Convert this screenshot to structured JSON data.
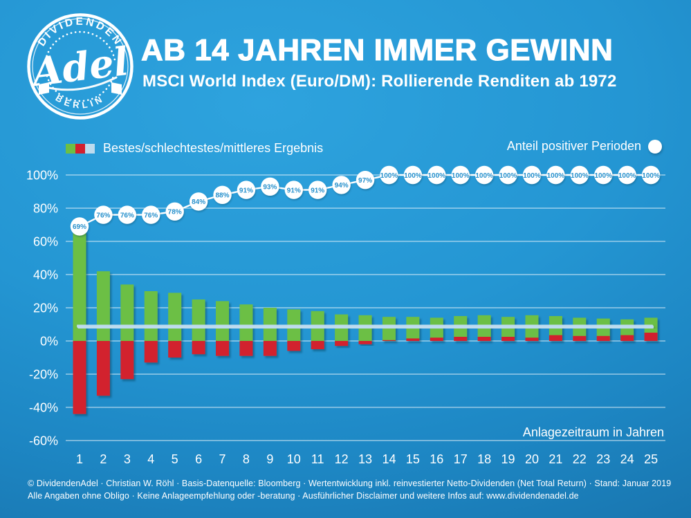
{
  "logo": {
    "arc_top": "DIVIDENDEN",
    "script": "Adel",
    "arc_bottom": "BERLIN"
  },
  "header": {
    "title": "AB 14 JAHREN IMMER GEWINN",
    "subtitle": "MSCI World Index (Euro/DM): Rollierende Renditen ab 1972"
  },
  "legend": {
    "bars_label": "Bestes/schlechtestes/mittleres Ergebnis",
    "circles_label": "Anteil positiver Perioden"
  },
  "colors": {
    "best": "#6cbf45",
    "worst": "#d2202e",
    "median": "#bddbee",
    "circle_fill": "#ffffff",
    "circle_text": "#2690cc",
    "grid": "rgba(255,255,255,0.55)",
    "text": "#ffffff"
  },
  "chart_data": {
    "type": "bar",
    "title": "AB 14 JAHREN IMMER GEWINN",
    "subtitle": "MSCI World Index (Euro/DM): Rollierende Renditen ab 1972",
    "xlabel": "Anlagezeitraum in Jahren",
    "ylabel": "",
    "ylim": [
      -60,
      100
    ],
    "grid": true,
    "legend_position": "top",
    "y_tick_labels": [
      "100%",
      "80%",
      "60%",
      "40%",
      "20%",
      "0%",
      "-20%",
      "-40%",
      "-60%"
    ],
    "y_tick_values": [
      100,
      80,
      60,
      40,
      20,
      0,
      -20,
      -40,
      -60
    ],
    "categories": [
      1,
      2,
      3,
      4,
      5,
      6,
      7,
      8,
      9,
      10,
      11,
      12,
      13,
      14,
      15,
      16,
      17,
      18,
      19,
      20,
      21,
      22,
      23,
      24,
      25
    ],
    "series": [
      {
        "name": "Bestes Ergebnis",
        "type": "bar",
        "color": "#6cbf45",
        "values": [
          66,
          42,
          34,
          30,
          29,
          25,
          24,
          22,
          20,
          19,
          18,
          16,
          15.5,
          14.5,
          14.5,
          14,
          15,
          15.5,
          14.5,
          15.5,
          15,
          14,
          13.5,
          13,
          14
        ]
      },
      {
        "name": "Schlechtestes Ergebnis",
        "type": "bar",
        "color": "#d2202e",
        "values": [
          -44,
          -33,
          -23,
          -13,
          -10,
          -8,
          -9,
          -9,
          -9,
          -6,
          -5,
          -3,
          -2,
          0.5,
          1.5,
          2,
          2.5,
          2.5,
          2.5,
          2,
          3.5,
          3,
          3,
          3.5,
          5
        ]
      },
      {
        "name": "Mittleres Ergebnis",
        "type": "line",
        "color": "#bddbee",
        "values": [
          9,
          9,
          9,
          9,
          9,
          8.9,
          8.9,
          8.9,
          8.8,
          8.8,
          8.8,
          8.7,
          8.7,
          8.7,
          8.6,
          8.6,
          8.6,
          8.5,
          8.5,
          8.5,
          8.5,
          8.4,
          8.4,
          8.4,
          8.4
        ]
      },
      {
        "name": "Anteil positiver Perioden",
        "type": "point-label",
        "unit": "%",
        "color": "#ffffff",
        "values": [
          69,
          76,
          76,
          76,
          78,
          84,
          88,
          91,
          93,
          91,
          91,
          94,
          97,
          100,
          100,
          100,
          100,
          100,
          100,
          100,
          100,
          100,
          100,
          100,
          100
        ]
      }
    ]
  },
  "footer": {
    "line1": "© DividendenAdel · Christian W. Röhl · Basis-Datenquelle: Bloomberg · Wertentwicklung inkl. reinvestierter Netto-Dividenden (Net Total Return) · Stand: Januar 2019",
    "line2": "Alle Angaben ohne Obligo · Keine Anlageempfehlung oder -beratung · Ausführlicher Disclaimer und weitere Infos auf: www.dividendenadel.de"
  }
}
